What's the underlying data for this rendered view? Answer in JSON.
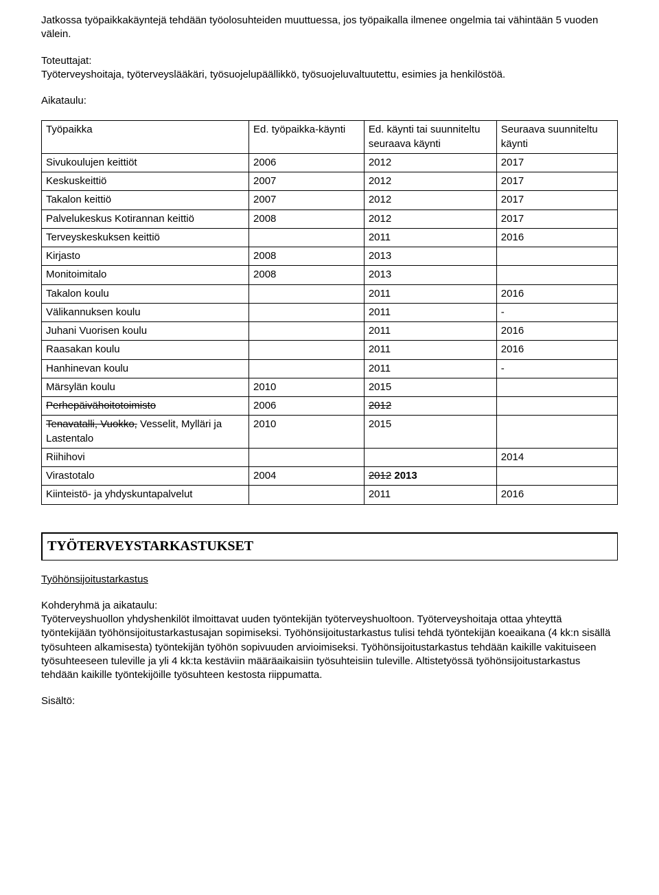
{
  "intro": {
    "p1": "Jatkossa työpaikkakäyntejä tehdään työolosuhteiden muuttuessa, jos työpaikalla ilmenee ongelmia tai vähintään 5 vuoden välein.",
    "p2_label": "Toteuttajat:",
    "p2_body": "Työterveyshoitaja, työterveyslääkäri, työsuojelupäällikkö, työsuojeluvaltuutettu, esimies ja henkilöstöä.",
    "p3_label": "Aikataulu:"
  },
  "table": {
    "headers": {
      "h1": "Työpaikka",
      "h2": "Ed. työpaikka-käynti",
      "h3": "Ed. käynti tai suunniteltu seuraava käynti",
      "h4": "Seuraava suunniteltu käynti"
    },
    "rows": [
      {
        "c1_plain": "Sivukoulujen keittiöt",
        "c2": "2006",
        "c3_plain": "2012",
        "c4": "2017"
      },
      {
        "c1_plain": "Keskuskeittiö",
        "c2": "2007",
        "c3_plain": "2012",
        "c4": "2017"
      },
      {
        "c1_plain": "Takalon keittiö",
        "c2": "2007",
        "c3_plain": "2012",
        "c4": "2017"
      },
      {
        "c1_plain": "Palvelukeskus Kotirannan keittiö",
        "c2": "2008",
        "c3_plain": "2012",
        "c4": "2017"
      },
      {
        "c1_plain": "Terveyskeskuksen keittiö",
        "c2": "",
        "c3_plain": "2011",
        "c4": "2016"
      },
      {
        "c1_plain": "Kirjasto",
        "c2": "2008",
        "c3_plain": "2013",
        "c4": ""
      },
      {
        "c1_plain": "Monitoimitalo",
        "c2": "2008",
        "c3_plain": "2013",
        "c4": ""
      },
      {
        "c1_plain": "Takalon koulu",
        "c2": "",
        "c3_plain": "2011",
        "c4": "2016"
      },
      {
        "c1_plain": "Välikannuksen koulu",
        "c2": "",
        "c3_plain": "2011",
        "c4": "-"
      },
      {
        "c1_plain": "Juhani Vuorisen koulu",
        "c2": "",
        "c3_plain": "2011",
        "c4": "2016"
      },
      {
        "c1_plain": "Raasakan koulu",
        "c2": "",
        "c3_plain": "2011",
        "c4": "2016"
      },
      {
        "c1_plain": "Hanhinevan koulu",
        "c2": "",
        "c3_plain": "2011",
        "c4": "-"
      },
      {
        "c1_plain": "Märsylän koulu",
        "c2": "2010",
        "c3_plain": "2015",
        "c4": ""
      },
      {
        "c1_strike": "Perhepäivähoitotoimisto",
        "c2": "2006",
        "c3_strike": "2012",
        "c4": ""
      },
      {
        "c1_strike": "Tenavatalli, Vuokko,",
        "c1_tail": " Vesselit, Mylläri ja Lastentalo",
        "c2": "2010",
        "c3_plain": "2015",
        "c4": ""
      },
      {
        "c1_plain": "Riihihovi",
        "c2": "",
        "c3_plain": "",
        "c4": "2014"
      },
      {
        "c1_plain": "Virastotalo",
        "c2": "2004",
        "c3_strike": "2012",
        "c3_tail": " 2013",
        "c4": ""
      },
      {
        "c1_plain": "Kiinteistö- ja yhdyskuntapalvelut",
        "c2": "",
        "c3_plain": "2011",
        "c4": "2016"
      }
    ]
  },
  "section": {
    "heading": "TYÖTERVEYSTARKASTUKSET",
    "sub": "Työhönsijoitustarkastus",
    "p_label": "Kohderyhmä ja aikataulu:",
    "p_body": "Työterveyshuollon yhdyshenkilöt ilmoittavat uuden työntekijän työterveyshuoltoon. Työterveyshoitaja ottaa yhteyttä työntekijään työhönsijoitustarkastusajan sopimiseksi. Työhönsijoitustarkastus tulisi tehdä työntekijän koeaikana (4 kk:n sisällä työsuhteen alkamisesta) työntekijän työhön sopivuuden arvioimiseksi. Työhönsijoitustarkastus tehdään kaikille vakituiseen työsuhteeseen tuleville ja yli 4 kk:ta kestäviin määräaikaisiin työsuhteisiin tuleville. Altistetyössä työhönsijoitustarkastus tehdään kaikille työntekijöille työsuhteen kestosta riippumatta.",
    "sisalto": "Sisältö:"
  },
  "colors": {
    "text": "#000000",
    "background": "#ffffff",
    "border": "#000000"
  }
}
